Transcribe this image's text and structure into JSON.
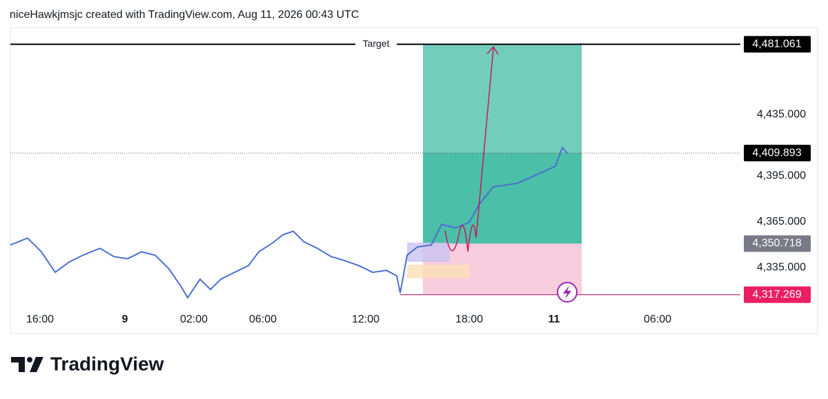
{
  "header": "niceHawkjmsjc created with TradingView.com, Aug 11, 2026 00:43 UTC",
  "logo": "TradingView",
  "chart_data": {
    "type": "line",
    "color": "#4a6fd0",
    "xlim": [
      0,
      42.32
    ],
    "ylim": [
      4307.2,
      4492
    ],
    "xticks": [
      {
        "value": 1.72,
        "label": "16:00"
      },
      {
        "value": 6.64,
        "label": "9"
      },
      {
        "value": 10.64,
        "label": "02:00"
      },
      {
        "value": 14.64,
        "label": "06:00"
      },
      {
        "value": 20.6,
        "label": "12:00"
      },
      {
        "value": 26.6,
        "label": "18:00"
      },
      {
        "value": 31.52,
        "label": "11"
      },
      {
        "value": 37.52,
        "label": "06:00"
      }
    ],
    "yticks": [
      {
        "value": 4435,
        "label": "4,435.000"
      },
      {
        "value": 4395,
        "label": "4,395.000"
      },
      {
        "value": 4365,
        "label": "4,365.000"
      },
      {
        "value": 4335,
        "label": "4,335.000"
      }
    ],
    "x": [
      0,
      1,
      1.8,
      2.6,
      3.4,
      4.2,
      5.2,
      6,
      6.8,
      7.6,
      8.4,
      9.2,
      9.88,
      10.28,
      11,
      11.6,
      12.2,
      13,
      13.8,
      14.4,
      15.2,
      15.8,
      16.4,
      17,
      17.8,
      18.6,
      19.4,
      20.2,
      21,
      21.8,
      22.4,
      22.6,
      23,
      23.6,
      24.4,
      25,
      25.8,
      26.6,
      27.2,
      28,
      28.6,
      29.4,
      30.2,
      31,
      31.6,
      32,
      32.28
    ],
    "values": [
      4349.8,
      4354.3,
      4345.3,
      4331.9,
      4338.6,
      4343.1,
      4347.6,
      4342.2,
      4340.8,
      4345.3,
      4343.1,
      4334.1,
      4322.9,
      4315.3,
      4327.4,
      4320.7,
      4327.4,
      4331.9,
      4336.3,
      4345.3,
      4351.1,
      4356.5,
      4358.8,
      4352.0,
      4347.6,
      4342.2,
      4339.5,
      4336.3,
      4331.9,
      4333.2,
      4329.6,
      4318.4,
      4343.1,
      4348.5,
      4349.8,
      4363.3,
      4361.0,
      4364.6,
      4376.7,
      4387.9,
      4388.8,
      4390.2,
      4394.2,
      4398.2,
      4401.4,
      4413.5,
      4409.893
    ],
    "position_x": [
      23.92,
      33.12
    ],
    "stop_start_x": 22.6,
    "target": {
      "value": 4481.061,
      "label": "4,481.061",
      "text": "Target"
    },
    "last_price": {
      "value": 4409.893,
      "label": "4,409.893"
    },
    "entry": {
      "value": 4350.718,
      "label": "4,350.718"
    },
    "stop": {
      "value": 4317.269,
      "label": "4,317.269"
    }
  }
}
